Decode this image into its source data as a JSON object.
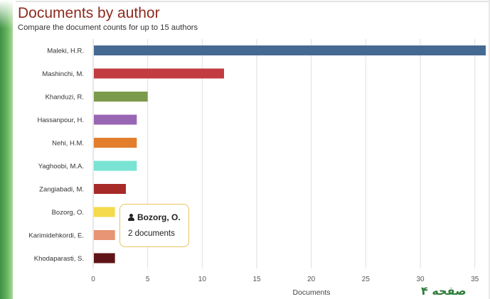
{
  "header": {
    "title": "Documents by author",
    "subtitle": "Compare the document counts for up to 15 authors"
  },
  "tooltip": {
    "author": "Bozorg, O.",
    "value_text": "2 documents",
    "icon": "user-icon"
  },
  "page_number": "صفحه ۴",
  "chart_data": {
    "type": "bar",
    "orientation": "horizontal",
    "title": "Documents by author",
    "subtitle": "Compare the document counts for up to 15 authors",
    "xlabel": "Documents",
    "ylabel": "",
    "xlim": [
      0,
      36
    ],
    "x_ticks": [
      0,
      5,
      10,
      15,
      20,
      25,
      30,
      35
    ],
    "grid": true,
    "legend": "none",
    "categories": [
      "Maleki, H.R.",
      "Mashinchi, M.",
      "Khanduzi, R.",
      "Hassanpour, H.",
      "Nehi, H.M.",
      "Yaghoobi, M.A.",
      "Zangiabadi, M.",
      "Bozorg, O.",
      "Karimidehkordi, E.",
      "Khodaparasti, S."
    ],
    "values": [
      36,
      12,
      5,
      4,
      4,
      4,
      3,
      2,
      2,
      2
    ],
    "colors": [
      "#456a92",
      "#c23b40",
      "#7c9a4b",
      "#9866b3",
      "#e37e2c",
      "#79e4d3",
      "#a72a29",
      "#f4da4d",
      "#e79574",
      "#5f1517"
    ]
  }
}
